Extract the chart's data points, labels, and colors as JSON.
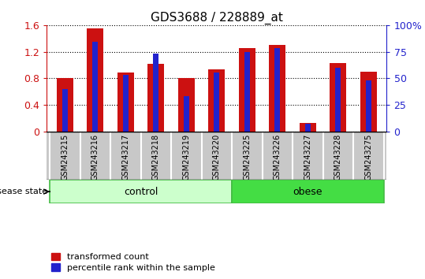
{
  "title": "GDS3688 / 228889_at",
  "samples": [
    "GSM243215",
    "GSM243216",
    "GSM243217",
    "GSM243218",
    "GSM243219",
    "GSM243220",
    "GSM243225",
    "GSM243226",
    "GSM243227",
    "GSM243228",
    "GSM243275"
  ],
  "transformed_count": [
    0.8,
    1.55,
    0.88,
    1.02,
    0.8,
    0.93,
    1.25,
    1.3,
    0.13,
    1.03,
    0.9
  ],
  "percentile_rank_pct": [
    40,
    84,
    53,
    73,
    33,
    55,
    75,
    78,
    7,
    60,
    48
  ],
  "groups": [
    {
      "label": "control",
      "start": 0,
      "end": 5,
      "facecolor": "#ccffcc",
      "edgecolor": "#44bb44"
    },
    {
      "label": "obese",
      "start": 6,
      "end": 10,
      "facecolor": "#44dd44",
      "edgecolor": "#44bb44"
    }
  ],
  "ylim_left": [
    0,
    1.6
  ],
  "ylim_right": [
    0,
    100
  ],
  "yticks_left": [
    0,
    0.4,
    0.8,
    1.2,
    1.6
  ],
  "yticks_right": [
    0,
    25,
    50,
    75,
    100
  ],
  "ytick_labels_left": [
    "0",
    "0.4",
    "0.8",
    "1.2",
    "1.6"
  ],
  "ytick_labels_right": [
    "0",
    "25",
    "50",
    "75",
    "100%"
  ],
  "bar_color_red": "#cc1111",
  "bar_color_blue": "#2222cc",
  "bar_width": 0.55,
  "blue_bar_width": 0.18,
  "left_label_color": "#cc1111",
  "right_label_color": "#2222cc",
  "legend_red_label": "transformed count",
  "legend_blue_label": "percentile rank within the sample",
  "disease_state_label": "disease state",
  "tick_area_bg": "#c8c8c8",
  "figsize": [
    5.39,
    3.54
  ],
  "dpi": 100
}
